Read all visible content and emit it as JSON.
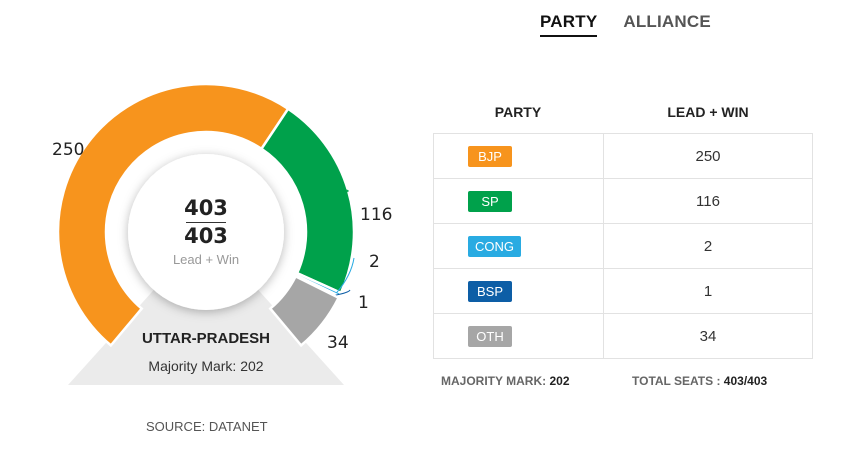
{
  "tabs": [
    {
      "label": "PARTY",
      "active": true
    },
    {
      "label": "ALLIANCE",
      "active": false
    }
  ],
  "chart_data": {
    "type": "pie",
    "subtype": "semi-donut-gauge",
    "categories": [
      "BJP",
      "SP",
      "CONG",
      "BSP",
      "OTH"
    ],
    "values": [
      250,
      116,
      2,
      1,
      34
    ],
    "value_labels": [
      "250",
      "116",
      "2",
      "1",
      "34"
    ],
    "colors": [
      "#f7941d",
      "#00a14b",
      "#29abe2",
      "#0d5ea6",
      "#a6a6a6"
    ],
    "total": "403",
    "declared": "403",
    "center_sub": "Lead + Win",
    "state": "UTTAR-PRADESH",
    "majority_text": "Majority Mark: 202"
  },
  "table": {
    "headers": [
      "PARTY",
      "LEAD + WIN"
    ],
    "rows": [
      {
        "party": "BJP",
        "value": "250",
        "color": "#f7941d"
      },
      {
        "party": "SP",
        "value": "116",
        "color": "#00a14b"
      },
      {
        "party": "CONG",
        "value": "2",
        "color": "#29abe2"
      },
      {
        "party": "BSP",
        "value": "1",
        "color": "#0d5ea6"
      },
      {
        "party": "OTH",
        "value": "34",
        "color": "#a6a6a6"
      }
    ]
  },
  "footer": {
    "majority_label": "MAJORITY MARK:",
    "majority_value": "202",
    "total_label": "TOTAL SEATS :",
    "total_value": "403/403"
  },
  "source": "SOURCE: DATANET"
}
